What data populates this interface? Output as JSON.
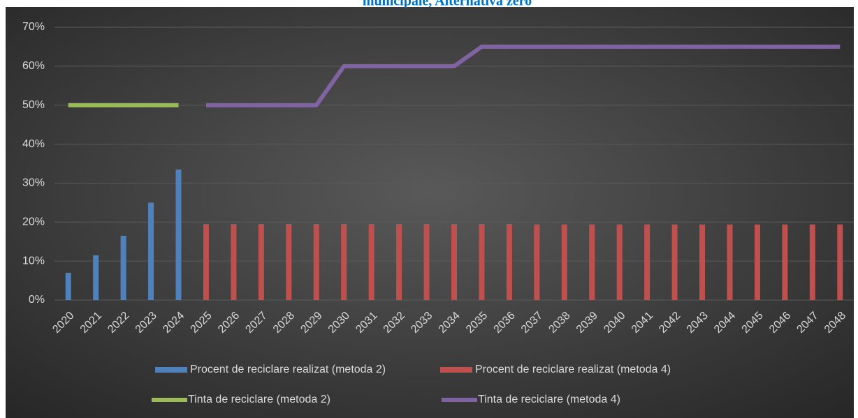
{
  "chart_data": {
    "type": "bar_line",
    "title": "municipale, Alternativa zero",
    "categories": [
      "2020",
      "2021",
      "2022",
      "2023",
      "2024",
      "2025",
      "2026",
      "2027",
      "2028",
      "2029",
      "2030",
      "2031",
      "2032",
      "2033",
      "2034",
      "2035",
      "2036",
      "2037",
      "2038",
      "2039",
      "2040",
      "2041",
      "2042",
      "2043",
      "2044",
      "2045",
      "2046",
      "2047",
      "2048"
    ],
    "series": [
      {
        "name": "Procent de reciclare realizat (metoda 2)",
        "kind": "bar",
        "color": "#4f81bd",
        "values": [
          7,
          11.5,
          16.5,
          25,
          33.5,
          null,
          null,
          null,
          null,
          null,
          null,
          null,
          null,
          null,
          null,
          null,
          null,
          null,
          null,
          null,
          null,
          null,
          null,
          null,
          null,
          null,
          null,
          null,
          null
        ]
      },
      {
        "name": "Procent de reciclare realizat (metoda 4)",
        "kind": "bar",
        "color": "#c0504d",
        "values": [
          null,
          null,
          null,
          null,
          null,
          19.5,
          19.5,
          19.5,
          19.5,
          19.5,
          19.5,
          19.5,
          19.5,
          19.5,
          19.5,
          19.5,
          19.5,
          19.4,
          19.4,
          19.4,
          19.4,
          19.4,
          19.4,
          19.4,
          19.4,
          19.4,
          19.4,
          19.4,
          19.4
        ]
      },
      {
        "name": "Tinta de reciclare (metoda 2)",
        "kind": "line",
        "color": "#9bbb59",
        "values": [
          50,
          50,
          50,
          50,
          50,
          null,
          null,
          null,
          null,
          null,
          null,
          null,
          null,
          null,
          null,
          null,
          null,
          null,
          null,
          null,
          null,
          null,
          null,
          null,
          null,
          null,
          null,
          null,
          null
        ]
      },
      {
        "name": "Tinta de reciclare (metoda 4)",
        "kind": "line",
        "color": "#8064a2",
        "values": [
          null,
          null,
          null,
          null,
          null,
          50,
          50,
          50,
          50,
          50,
          60,
          60,
          60,
          60,
          60,
          65,
          65,
          65,
          65,
          65,
          65,
          65,
          65,
          65,
          65,
          65,
          65,
          65,
          65
        ]
      }
    ],
    "ylim": [
      0,
      70
    ],
    "yticks": [
      {
        "value": 0,
        "label": "0%"
      },
      {
        "value": 10,
        "label": "10%"
      },
      {
        "value": 20,
        "label": "20%"
      },
      {
        "value": 30,
        "label": "30%"
      },
      {
        "value": 40,
        "label": "40%"
      },
      {
        "value": 50,
        "label": "50%"
      },
      {
        "value": 60,
        "label": "60%"
      },
      {
        "value": 70,
        "label": "70%"
      }
    ],
    "grid": true,
    "legend": "bottom"
  }
}
